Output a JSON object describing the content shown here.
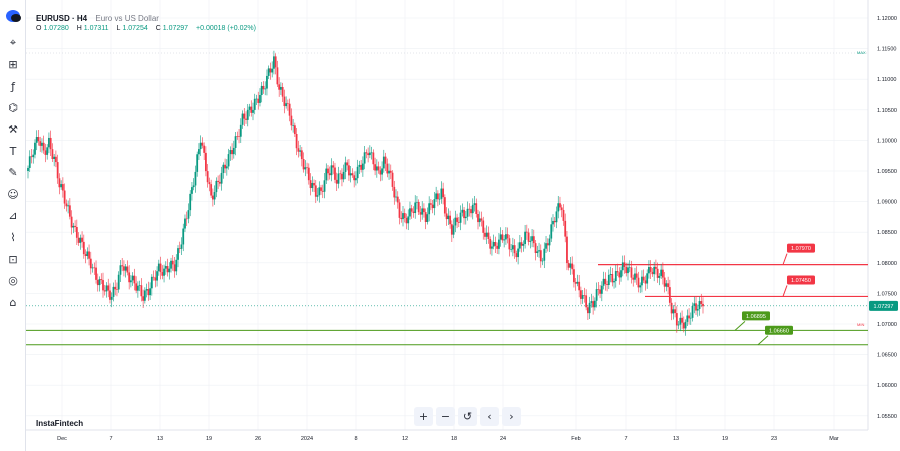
{
  "header": {
    "symbol": "EURUSD · H4",
    "description": "Euro vs US Dollar",
    "ohlc": {
      "o_label": "O",
      "o": "1.07280",
      "h_label": "H",
      "h": "1.07311",
      "l_label": "L",
      "l": "1.07254",
      "c_label": "C",
      "c": "1.07297",
      "change": "+0.00018 (+0.02%)"
    }
  },
  "brand": "InstaFintech",
  "toolbar": [
    "crosshair-icon",
    "fib-tool-icon",
    "fx-icon",
    "pattern-icon",
    "measure-icon",
    "text-icon",
    "brush-icon",
    "emoji-icon",
    "ruler-icon",
    "magnet-icon",
    "lock-icon",
    "hide-icon",
    "trash-icon"
  ],
  "navbar": [
    "+",
    "−",
    "↺",
    "‹",
    "›"
  ],
  "colors": {
    "up": "#089981",
    "down": "#f23645",
    "resistance": "#f23645",
    "support": "#4c9a1a",
    "price_line": "#089981",
    "grid": "#eef0f4"
  },
  "chart_data": {
    "type": "candlestick",
    "symbol": "EURUSD",
    "timeframe": "H4",
    "ylim": [
      1.05,
      1.12
    ],
    "yticks": [
      "1.12000",
      "1.11500",
      "1.11000",
      "1.10500",
      "1.10000",
      "1.09500",
      "1.09000",
      "1.08500",
      "1.08000",
      "1.07500",
      "1.07000",
      "1.06500",
      "1.06000",
      "1.05500"
    ],
    "ytick_values": [
      1.12,
      1.115,
      1.11,
      1.105,
      1.1,
      1.095,
      1.09,
      1.085,
      1.08,
      1.075,
      1.07,
      1.065,
      1.06,
      1.055
    ],
    "xticks": [
      "Dec",
      "7",
      "13",
      "19",
      "26",
      "2024",
      "8",
      "12",
      "18",
      "24",
      "Feb",
      "7",
      "13",
      "19",
      "23",
      "Mar"
    ],
    "current_price": "1.07297",
    "max_marker": "MAX",
    "min_marker": "MIN",
    "resistance": [
      {
        "label": "1.07970",
        "value": 1.0797
      },
      {
        "label": "1.07450",
        "value": 1.0745
      }
    ],
    "support": [
      {
        "label": "1.06895",
        "value": 1.06895
      },
      {
        "label": "1.06660",
        "value": 1.0666
      }
    ],
    "price_path": [
      [
        1.0955,
        1.0985,
        1.1005,
        1.098,
        1.0995,
        1.097,
        1.093,
        1.0905,
        1.0875,
        1.085,
        1.0835,
        1.0815,
        1.08,
        1.0775,
        1.0765,
        1.0755,
        1.0745,
        1.0765,
        1.08,
        1.078,
        1.077,
        1.076,
        1.0745,
        1.0755,
        1.0775,
        1.079,
        1.0785,
        1.0795
      ],
      [
        1.0795,
        1.0825,
        1.0865,
        1.0905,
        1.095,
        1.1005,
        1.0955,
        1.0905,
        1.0925,
        1.0945,
        1.0965,
        1.0985,
        1.1005,
        1.1035,
        1.1045,
        1.1055,
        1.107,
        1.1085,
        1.111,
        1.113,
        1.1085,
        1.1065,
        1.1045,
        1.1005,
        1.0975,
        1.0955,
        1.093,
        1.0915
      ],
      [
        1.0915,
        1.0945,
        1.0955,
        1.0935,
        1.0945,
        1.096,
        1.0935,
        1.095,
        1.0965,
        1.0985,
        1.0965,
        1.0945,
        1.0965,
        1.095,
        1.0915,
        1.088,
        1.087,
        1.088,
        1.0895,
        1.0885,
        1.0875,
        1.0895,
        1.0905,
        1.0915,
        1.0875,
        1.0855,
        1.087,
        1.088
      ],
      [
        1.088,
        1.0895,
        1.0875,
        1.0855,
        1.0835,
        1.0825,
        1.0835,
        1.0845,
        1.083,
        1.0815,
        1.0825,
        1.0845,
        1.084,
        1.0825,
        1.0805,
        1.0825,
        1.0855,
        1.0885,
        1.0895,
        1.0805,
        1.0785,
        1.076,
        1.0745,
        1.0725,
        1.0735,
        1.0755,
        1.0765,
        1.0775
      ],
      [
        1.0775,
        1.0785,
        1.0795,
        1.0785,
        1.0775,
        1.0765,
        1.0775,
        1.079,
        1.0785,
        1.078,
        1.0765,
        1.0725,
        1.0705,
        1.07,
        1.0705,
        1.0725,
        1.073,
        1.0729
      ]
    ]
  }
}
